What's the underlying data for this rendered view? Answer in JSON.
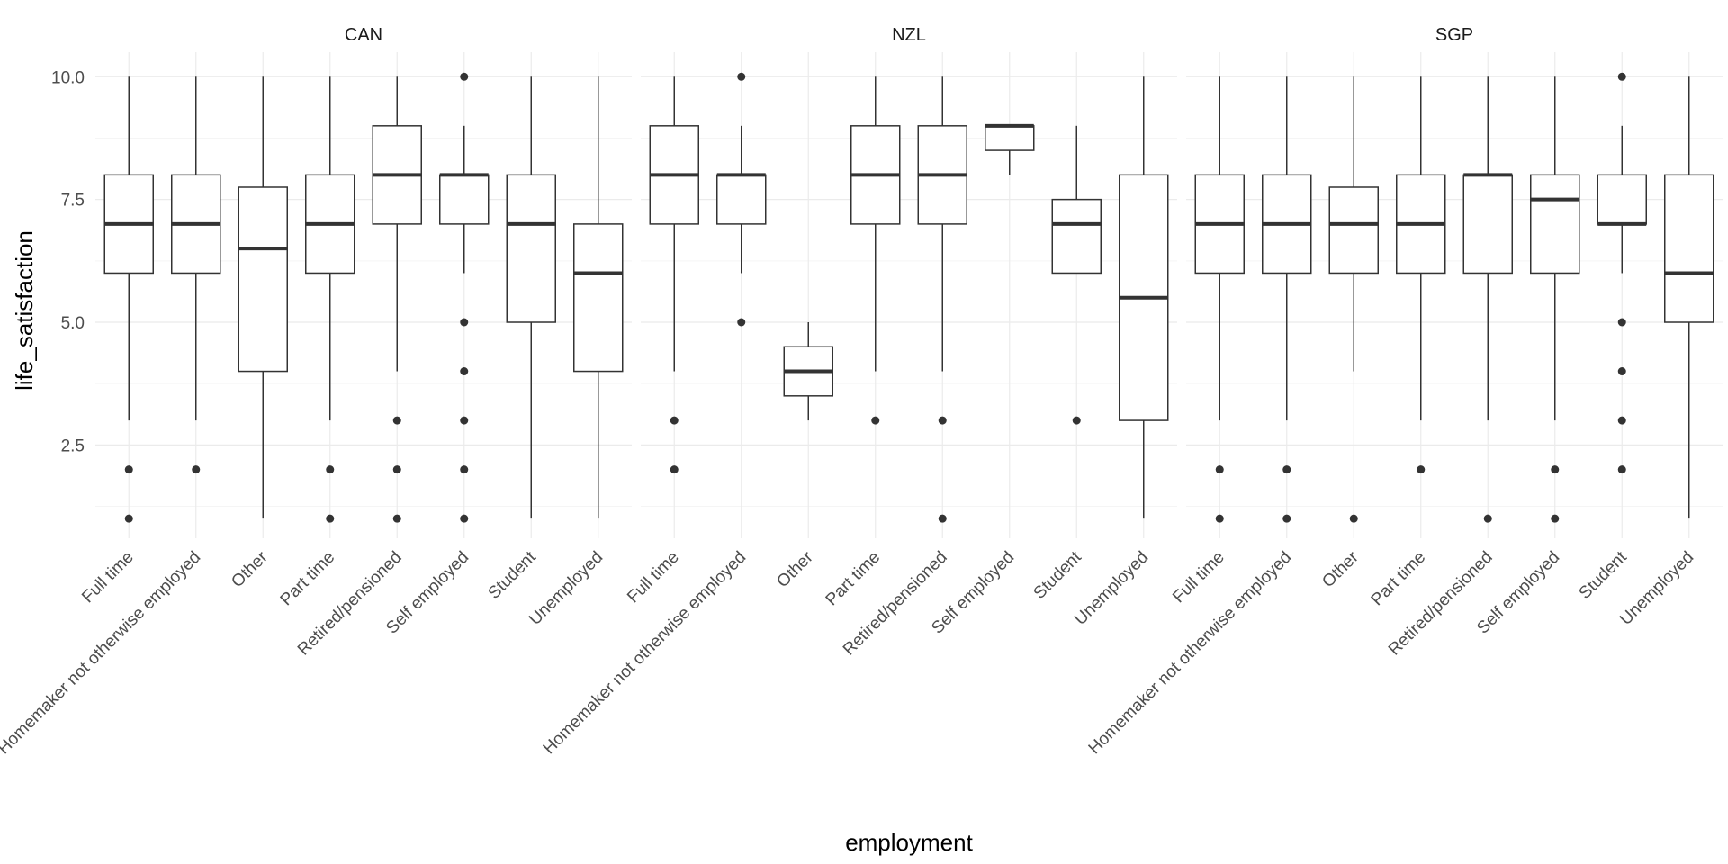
{
  "chart_data": {
    "type": "boxplot",
    "title": "",
    "xlabel": "employment",
    "ylabel": "life_satisfaction",
    "ylim": [
      0.6,
      10.5
    ],
    "yticks": [
      "2.5",
      "5.0",
      "7.5",
      "10.0"
    ],
    "grid": true,
    "categories": [
      "Full time",
      "Homemaker not otherwise employed",
      "Other",
      "Part time",
      "Retired/pensioned",
      "Self employed",
      "Student",
      "Unemployed"
    ],
    "facets": [
      {
        "name": "CAN",
        "boxes": [
          {
            "category": "Full time",
            "lower": 3,
            "q1": 6,
            "median": 7,
            "q3": 8,
            "upper": 10,
            "outliers": [
              1,
              2
            ]
          },
          {
            "category": "Homemaker not otherwise employed",
            "lower": 3,
            "q1": 6,
            "median": 7,
            "q3": 8,
            "upper": 10,
            "outliers": [
              2
            ]
          },
          {
            "category": "Other",
            "lower": 1,
            "q1": 4,
            "median": 6.5,
            "q3": 7.75,
            "upper": 10,
            "outliers": []
          },
          {
            "category": "Part time",
            "lower": 3,
            "q1": 6,
            "median": 7,
            "q3": 8,
            "upper": 10,
            "outliers": [
              1,
              2
            ]
          },
          {
            "category": "Retired/pensioned",
            "lower": 4,
            "q1": 7,
            "median": 8,
            "q3": 9,
            "upper": 10,
            "outliers": [
              1,
              2,
              3
            ]
          },
          {
            "category": "Self employed",
            "lower": 6,
            "q1": 7,
            "median": 8,
            "q3": 8,
            "upper": 9,
            "outliers": [
              1,
              2,
              3,
              4,
              5,
              10
            ]
          },
          {
            "category": "Student",
            "lower": 1,
            "q1": 5,
            "median": 7,
            "q3": 8,
            "upper": 10,
            "outliers": []
          },
          {
            "category": "Unemployed",
            "lower": 1,
            "q1": 4,
            "median": 6,
            "q3": 7,
            "upper": 10,
            "outliers": []
          }
        ]
      },
      {
        "name": "NZL",
        "boxes": [
          {
            "category": "Full time",
            "lower": 4,
            "q1": 7,
            "median": 8,
            "q3": 9,
            "upper": 10,
            "outliers": [
              2,
              3
            ]
          },
          {
            "category": "Homemaker not otherwise employed",
            "lower": 6,
            "q1": 7,
            "median": 8,
            "q3": 8,
            "upper": 9,
            "outliers": [
              5,
              10
            ]
          },
          {
            "category": "Other",
            "lower": 3,
            "q1": 3.5,
            "median": 4,
            "q3": 4.5,
            "upper": 5,
            "outliers": []
          },
          {
            "category": "Part time",
            "lower": 4,
            "q1": 7,
            "median": 8,
            "q3": 9,
            "upper": 10,
            "outliers": [
              3
            ]
          },
          {
            "category": "Retired/pensioned",
            "lower": 4,
            "q1": 7,
            "median": 8,
            "q3": 9,
            "upper": 10,
            "outliers": [
              1,
              3
            ]
          },
          {
            "category": "Self employed",
            "lower": 8,
            "q1": 8.5,
            "median": 9,
            "q3": 9,
            "upper": 9,
            "outliers": []
          },
          {
            "category": "Student",
            "lower": 6,
            "q1": 6,
            "median": 7,
            "q3": 7.5,
            "upper": 9,
            "outliers": [
              3
            ]
          },
          {
            "category": "Unemployed",
            "lower": 1,
            "q1": 3,
            "median": 5.5,
            "q3": 8,
            "upper": 10,
            "outliers": []
          }
        ]
      },
      {
        "name": "SGP",
        "boxes": [
          {
            "category": "Full time",
            "lower": 3,
            "q1": 6,
            "median": 7,
            "q3": 8,
            "upper": 10,
            "outliers": [
              1,
              2
            ]
          },
          {
            "category": "Homemaker not otherwise employed",
            "lower": 3,
            "q1": 6,
            "median": 7,
            "q3": 8,
            "upper": 10,
            "outliers": [
              1,
              2
            ]
          },
          {
            "category": "Other",
            "lower": 4,
            "q1": 6,
            "median": 7,
            "q3": 7.75,
            "upper": 10,
            "outliers": [
              1
            ]
          },
          {
            "category": "Part time",
            "lower": 3,
            "q1": 6,
            "median": 7,
            "q3": 8,
            "upper": 10,
            "outliers": [
              2
            ]
          },
          {
            "category": "Retired/pensioned",
            "lower": 3,
            "q1": 6,
            "median": 8,
            "q3": 8,
            "upper": 10,
            "outliers": [
              1
            ]
          },
          {
            "category": "Self employed",
            "lower": 3,
            "q1": 6,
            "median": 7.5,
            "q3": 8,
            "upper": 10,
            "outliers": [
              1,
              2
            ]
          },
          {
            "category": "Student",
            "lower": 6,
            "q1": 7,
            "median": 7,
            "q3": 8,
            "upper": 9,
            "outliers": [
              2,
              3,
              4,
              5,
              10
            ]
          },
          {
            "category": "Unemployed",
            "lower": 1,
            "q1": 5,
            "median": 6,
            "q3": 8,
            "upper": 10,
            "outliers": []
          }
        ]
      }
    ]
  },
  "colors": {
    "background": "#ffffff",
    "grid_major": "#ebebeb",
    "grid_minor": "#f5f5f5",
    "box_line": "#333333",
    "tick_text": "#4d4d4d",
    "axis_title": "#000000",
    "facet_title": "#1a1a1a"
  }
}
